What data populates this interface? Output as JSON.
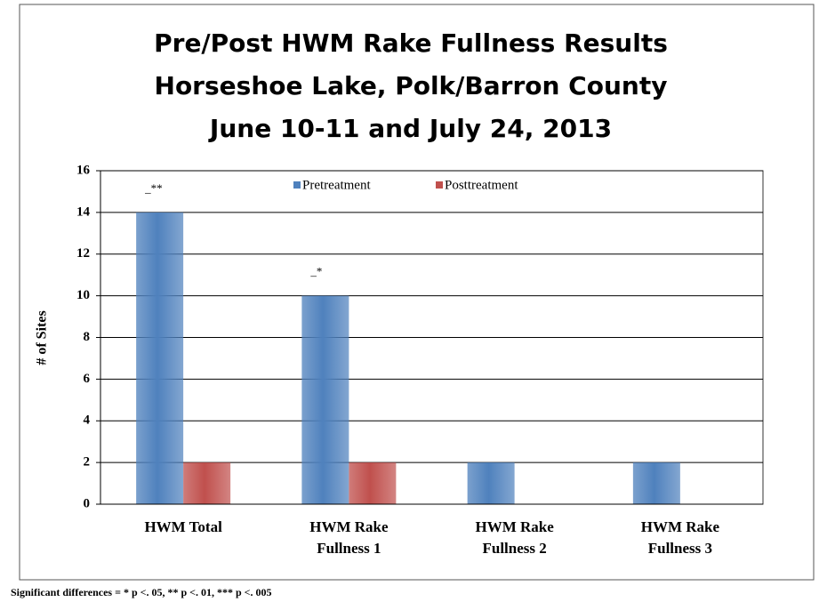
{
  "chart_data": {
    "type": "bar",
    "title": [
      "Pre/Post HWM Rake Fullness Results",
      "Horseshoe Lake, Polk/Barron County",
      "June 10-11 and July 24, 2013"
    ],
    "categories": [
      "HWM Total",
      "HWM Rake Fullness 1",
      "HWM Rake Fullness 2",
      "HWM Rake Fullness 3"
    ],
    "series": [
      {
        "name": "Pretreatment",
        "color": "#4f81bd",
        "values": [
          14,
          10,
          2,
          2
        ]
      },
      {
        "name": "Posttreatment",
        "color": "#c0504d",
        "values": [
          2,
          2,
          0,
          0
        ]
      }
    ],
    "ylabel": "# of Sites",
    "ylim": [
      0,
      16
    ],
    "yticks": [
      0,
      2,
      4,
      6,
      8,
      10,
      12,
      14,
      16
    ],
    "grid": true,
    "legend": "top",
    "annotations": [
      {
        "text": "_**",
        "x": "HWM Total"
      },
      {
        "text": "_*",
        "x": "HWM Rake Fullness 1"
      }
    ],
    "footnote": "Significant differences = * p <. 05, ** p <. 01, *** p <. 005"
  }
}
